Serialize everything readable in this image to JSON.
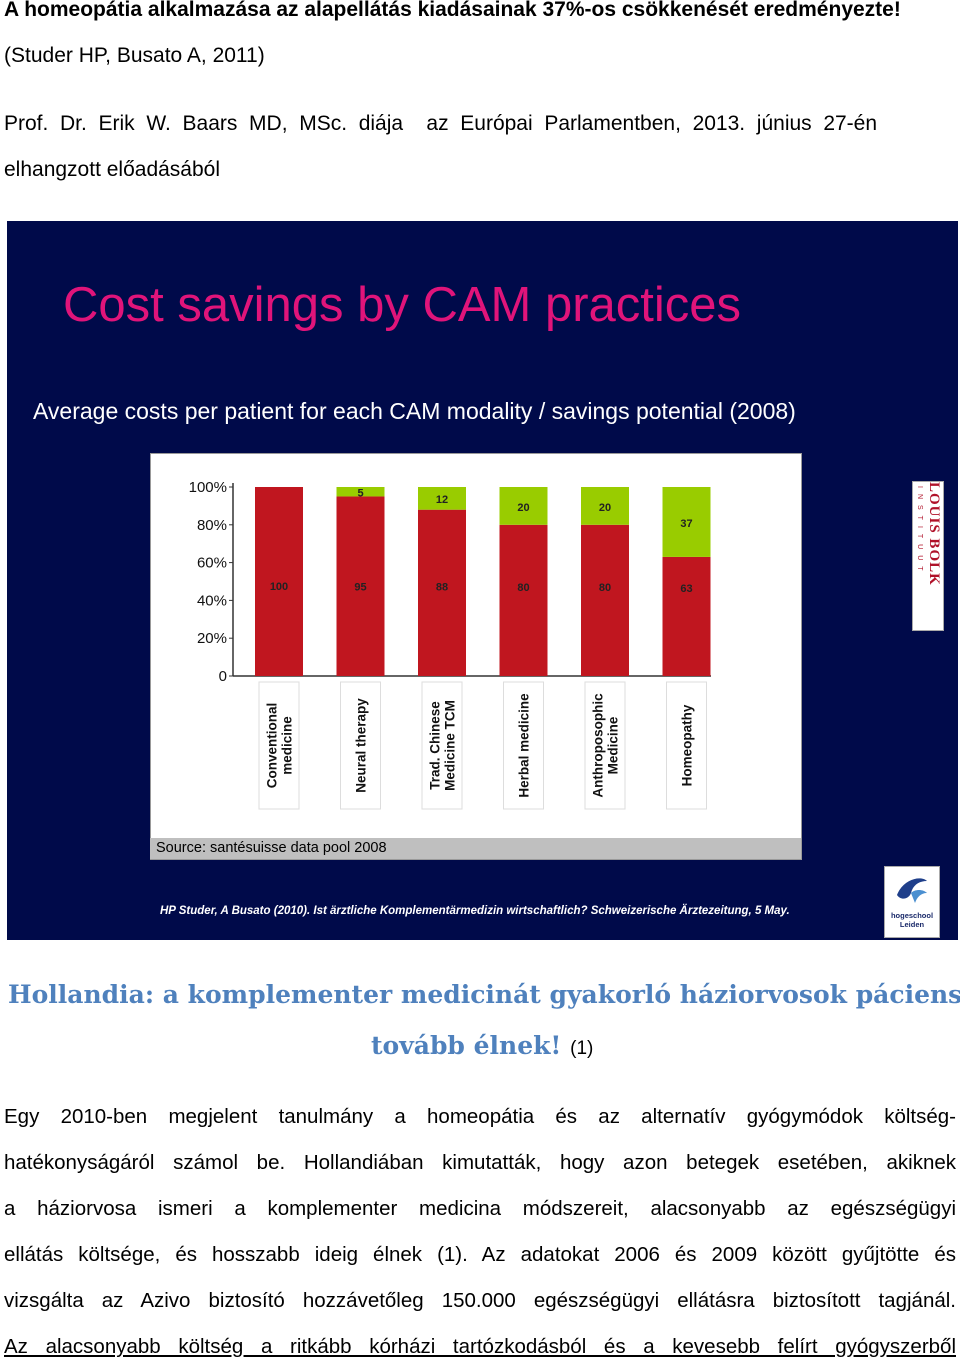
{
  "doc": {
    "headline": "A homeopátia alkalmazása az alapellátás kiadásainak 37%-os csökkenését eredményezte!",
    "citation": "(Studer HP, Busato A, 2011)",
    "intro_line1": "Prof.  Dr.  Erik  W.  Baars  MD,  MSc.  diája    az  Európai  Parlamentben,  2013.  június  27-én",
    "intro_line2": "elhangzott előadásából",
    "section_heading_line1": "Hollandia: a komplementer medicinát gyakorló háziorvosok páciensei",
    "section_heading_line2": "tovább élnek!",
    "section_heading_ref": "(1)",
    "body_lines": [
      "Egy 2010-ben megjelent tanulmány a homeopátia és az alternatív gyógymódok költség-",
      "hatékonyságáról számol be. Hollandiában kimutatták, hogy azon betegek esetében, akiknek",
      "a háziorvosa ismeri a komplementer medicina módszereit, alacsonyabb az egészségügyi",
      "ellátás költsége, és hosszabb ideig élnek (1). Az adatokat 2006 és 2009 között gyűjtötte és",
      "vizsgálta az Azivo biztosító hozzávetőleg 150.000 egészségügyi ellátásra biztosított tagjánál."
    ],
    "last_line": "Az alacsonyabb költség a ritkább kórházi tartózkodásból és a kevesebb felírt gyógyszerből"
  },
  "slide": {
    "title": "Cost savings by CAM practices",
    "subtitle": "Average costs per patient for each CAM modality / savings potential (2008)",
    "source": "Source: santésuisse data pool 2008",
    "reference": "HP Studer, A Busato (2010). Ist ärztliche Komplementärmedizin wirtschaftlich? Schweizerische Ärztezeitung, 5 May.",
    "logo_louis_bolk": "LOUIS BOLK",
    "logo_louis_bolk_sub": "INSTITUUT",
    "logo_hogeschool": "hogeschool Leiden",
    "colors": {
      "background": "#000a4a",
      "title": "#e0147a",
      "cost": "#c0161f",
      "savings": "#99cc00"
    }
  },
  "chart_data": {
    "type": "bar",
    "stacked": true,
    "categories": [
      "Conventional medicine",
      "Neural therapy",
      "Trad. Chinese Medicine TCM",
      "Herbal medicine",
      "Anthroposophic Medicine",
      "Homeopathy"
    ],
    "series": [
      {
        "values": [
          100,
          95,
          88,
          80,
          80,
          63
        ]
      },
      {
        "values": [
          0,
          5,
          12,
          20,
          20,
          37
        ]
      }
    ],
    "yticks": [
      "0",
      "20%",
      "40%",
      "60%",
      "80%",
      "100%"
    ],
    "ylim": [
      0,
      100
    ],
    "title": "",
    "xlabel": "",
    "ylabel": ""
  }
}
